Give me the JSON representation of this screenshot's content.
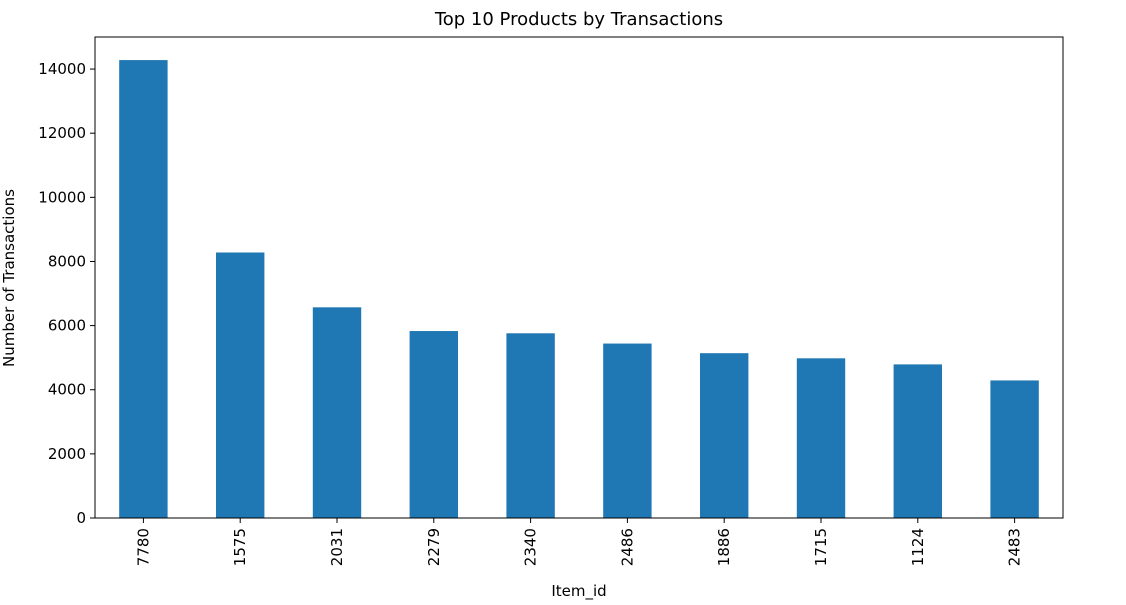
{
  "chart_data": {
    "type": "bar",
    "title": "Top 10 Products by Transactions",
    "xlabel": "Item_id",
    "ylabel": "Number of Transactions",
    "categories": [
      "7780",
      "1575",
      "2031",
      "2279",
      "2340",
      "2486",
      "1886",
      "1715",
      "1124",
      "2483"
    ],
    "values": [
      14280,
      8280,
      6570,
      5830,
      5760,
      5440,
      5140,
      4980,
      4790,
      4290
    ],
    "ylim": [
      0,
      15000
    ],
    "yticks": [
      0,
      2000,
      4000,
      6000,
      8000,
      10000,
      12000,
      14000
    ],
    "grid": false,
    "legend": "none",
    "bar_color": "#1f77b4"
  }
}
